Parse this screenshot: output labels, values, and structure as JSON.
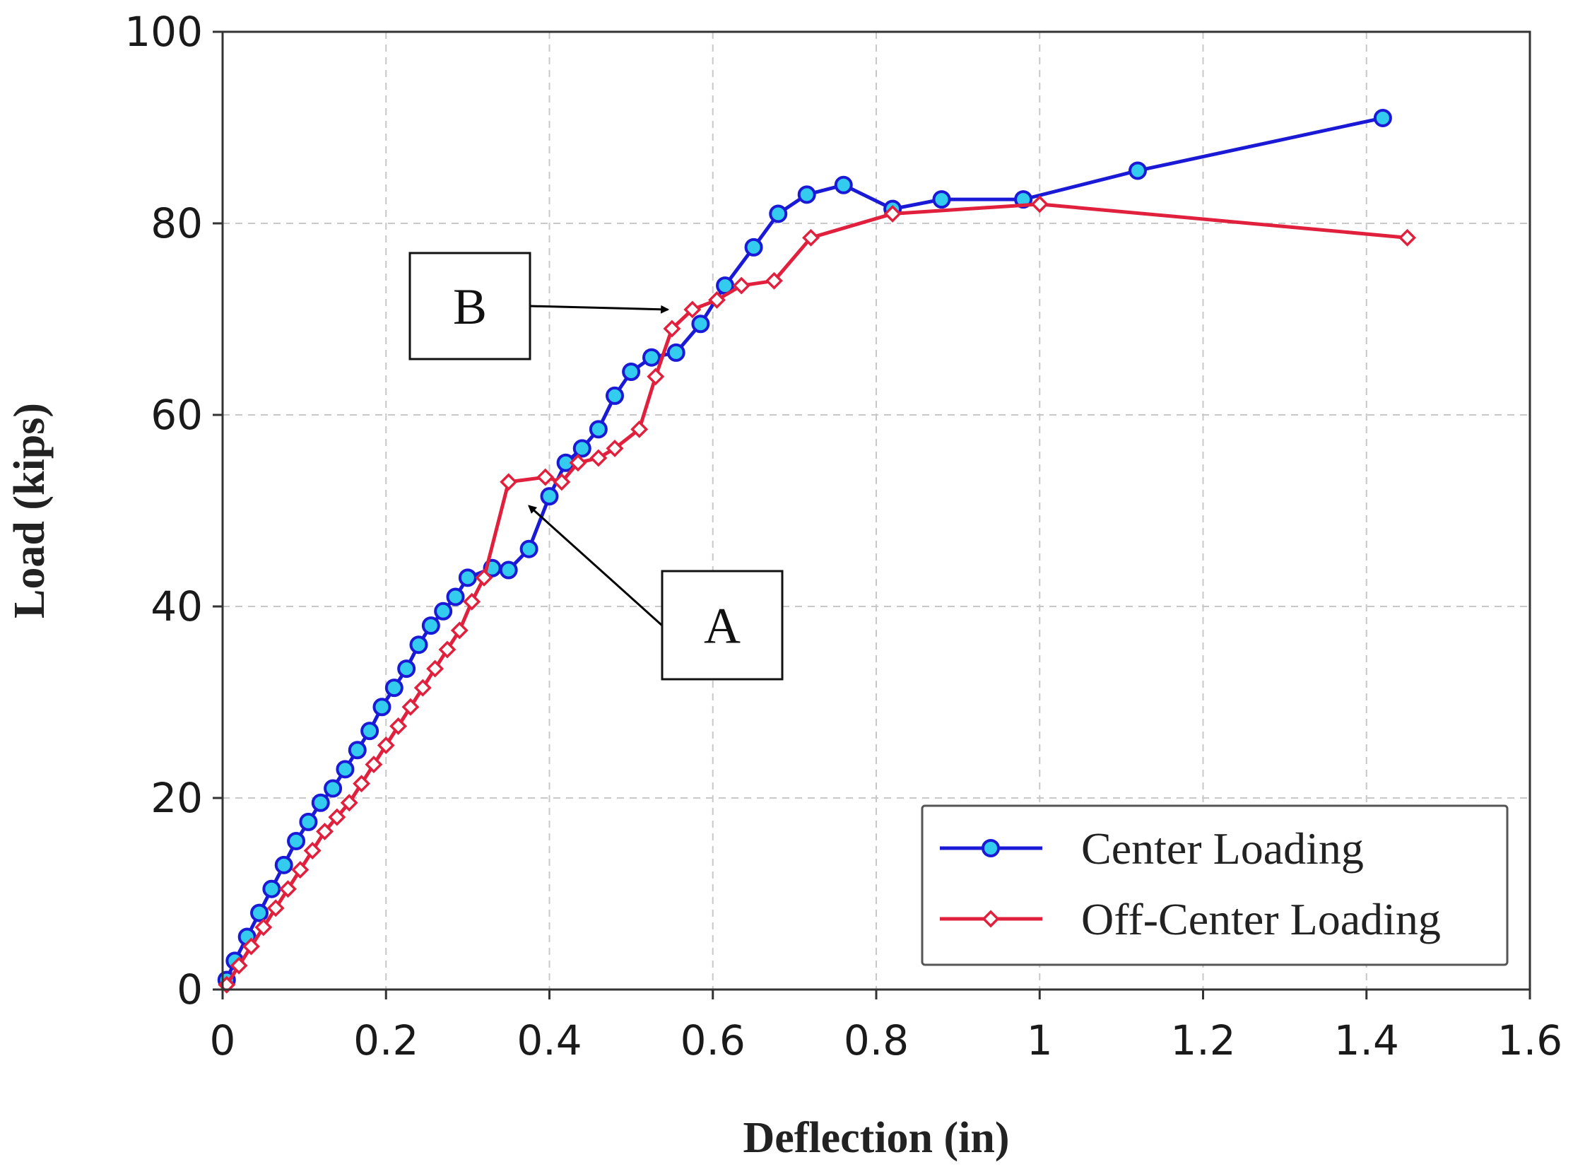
{
  "chart_data": {
    "type": "line",
    "title": "",
    "xlabel": "Deflection (in)",
    "ylabel": "Load (kips)",
    "xlim": [
      0,
      1.6
    ],
    "ylim": [
      0,
      100
    ],
    "x_ticks": [
      0,
      0.2,
      0.4,
      0.6,
      0.8,
      1,
      1.2,
      1.4,
      1.6
    ],
    "x_tick_labels": [
      "0",
      "0.2",
      "0.4",
      "0.6",
      "0.8",
      "1",
      "1.2",
      "1.4",
      "1.6"
    ],
    "y_ticks": [
      0,
      20,
      40,
      60,
      80,
      100
    ],
    "y_tick_labels": [
      "0",
      "20",
      "40",
      "60",
      "80",
      "100"
    ],
    "grid": true,
    "legend_position": "bottom-right",
    "series": [
      {
        "name": "Center Loading",
        "color": "#1a1ad6",
        "marker": "circle",
        "marker_fill": "#33ccee",
        "x": [
          0.005,
          0.015,
          0.03,
          0.045,
          0.06,
          0.075,
          0.09,
          0.105,
          0.12,
          0.135,
          0.15,
          0.165,
          0.18,
          0.195,
          0.21,
          0.225,
          0.24,
          0.255,
          0.27,
          0.285,
          0.3,
          0.33,
          0.35,
          0.375,
          0.4,
          0.42,
          0.44,
          0.46,
          0.48,
          0.5,
          0.525,
          0.555,
          0.585,
          0.615,
          0.65,
          0.68,
          0.715,
          0.76,
          0.82,
          0.88,
          0.98,
          1.12,
          1.42
        ],
        "y": [
          1,
          3,
          5.5,
          8,
          10.5,
          13,
          15.5,
          17.5,
          19.5,
          21,
          23,
          25,
          27,
          29.5,
          31.5,
          33.5,
          36,
          38,
          39.5,
          41,
          43,
          44,
          43.8,
          46,
          51.5,
          55,
          56.5,
          58.5,
          62,
          64.5,
          66,
          66.5,
          69.5,
          73.5,
          77.5,
          81,
          83,
          84,
          81.5,
          82.5,
          82.5,
          85.5,
          91
        ]
      },
      {
        "name": "Off-Center Loading",
        "color": "#e0203c",
        "marker": "diamond",
        "marker_fill": "#ffffff",
        "x": [
          0.005,
          0.02,
          0.035,
          0.05,
          0.065,
          0.08,
          0.095,
          0.11,
          0.125,
          0.14,
          0.155,
          0.17,
          0.185,
          0.2,
          0.215,
          0.23,
          0.245,
          0.26,
          0.275,
          0.29,
          0.305,
          0.32,
          0.35,
          0.395,
          0.415,
          0.435,
          0.46,
          0.48,
          0.51,
          0.53,
          0.55,
          0.575,
          0.605,
          0.635,
          0.675,
          0.72,
          0.82,
          1.0,
          1.45
        ],
        "y": [
          0.5,
          2.5,
          4.5,
          6.5,
          8.5,
          10.5,
          12.5,
          14.5,
          16.5,
          18,
          19.5,
          21.5,
          23.5,
          25.5,
          27.5,
          29.5,
          31.5,
          33.5,
          35.5,
          37.5,
          40.5,
          43,
          53,
          53.5,
          53,
          55,
          55.5,
          56.5,
          58.5,
          64,
          69,
          71,
          72,
          73.5,
          74,
          78.5,
          81,
          82,
          78.5
        ]
      }
    ],
    "annotations": [
      {
        "label": "A",
        "target_x": 0.375,
        "target_y": 50.5
      },
      {
        "label": "B",
        "target_x": 0.545,
        "target_y": 71
      }
    ]
  }
}
